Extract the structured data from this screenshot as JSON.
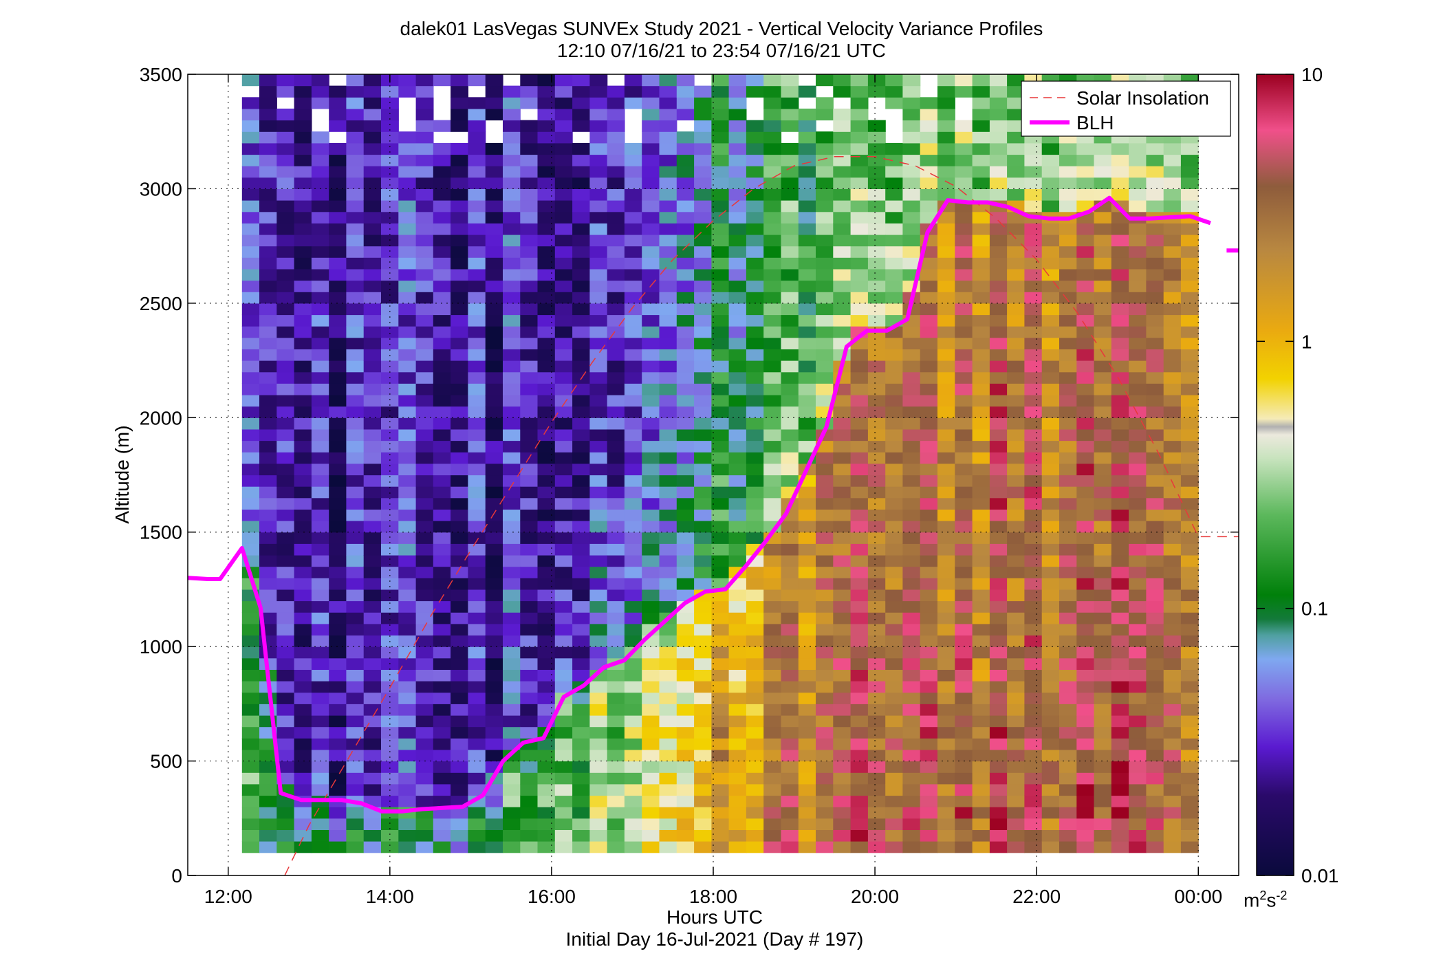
{
  "chart_data": {
    "type": "heatmap",
    "title": "dalek01 LasVegas SUNVEx Study 2021 - Vertical Velocity Variance Profiles",
    "subtitle": "12:10 07/16/21 to 23:54 07/16/21  UTC",
    "xlabel": "Hours UTC",
    "xlabel2": "Initial Day 16-Jul-2021 (Day # 197)",
    "ylabel": "Altitude (m)",
    "xlim": [
      11.5,
      24.5
    ],
    "ylim": [
      0,
      3500
    ],
    "x_ticks": [
      12,
      14,
      16,
      18,
      20,
      22,
      24
    ],
    "x_tick_labels": [
      "12:00",
      "14:00",
      "16:00",
      "18:00",
      "20:00",
      "22:00",
      "00:00"
    ],
    "y_ticks": [
      0,
      500,
      1000,
      1500,
      2000,
      2500,
      3000,
      3500
    ],
    "y_tick_labels": [
      "0",
      "500",
      "1000",
      "1500",
      "2000",
      "2500",
      "3000",
      "3500"
    ],
    "grid": true,
    "legend_position": "top-right",
    "colorbar": {
      "scale": "log",
      "range": [
        0.01,
        10
      ],
      "ticks": [
        0.01,
        0.1,
        1,
        10
      ],
      "tick_labels": [
        "0.01",
        "0.1",
        "1",
        "10"
      ],
      "unit_base": "m",
      "unit_exp1": "2",
      "unit_mid": "s",
      "unit_exp2": "-2"
    },
    "heatmap": {
      "time_start": 12.17,
      "time_end": 24.0,
      "n_cols": 55,
      "alt_start": 100,
      "alt_end": 3500,
      "n_rows": 68,
      "pattern_description": "log10 variance; low (<0.03) above boundary layer in morning, rising to ~0.5-3 within convective boundary layer in afternoon"
    },
    "series": [
      {
        "name": "Solar Insolation",
        "color": "#e8383a",
        "style": "dashed",
        "x": [
          12.7,
          13.0,
          13.5,
          14.0,
          14.5,
          15.0,
          15.5,
          16.0,
          16.5,
          17.0,
          17.5,
          18.0,
          18.5,
          19.0,
          19.5,
          20.0,
          20.5,
          21.0,
          21.5,
          22.0,
          22.5,
          23.0,
          23.5,
          24.0,
          24.5
        ],
        "y": [
          0,
          220,
          520,
          820,
          1130,
          1420,
          1700,
          1980,
          2240,
          2480,
          2690,
          2860,
          3000,
          3100,
          3140,
          3140,
          3100,
          3010,
          2870,
          2690,
          2460,
          2180,
          1850,
          1480,
          1480
        ]
      },
      {
        "name": "BLH",
        "color": "#ff00ff",
        "style": "solid",
        "x": [
          11.5,
          11.75,
          11.9,
          12.17,
          12.4,
          12.65,
          12.9,
          13.15,
          13.4,
          13.65,
          13.9,
          14.15,
          14.4,
          14.65,
          14.9,
          15.15,
          15.4,
          15.65,
          15.9,
          16.15,
          16.4,
          16.65,
          16.9,
          17.15,
          17.4,
          17.65,
          17.9,
          18.15,
          18.4,
          18.65,
          18.9,
          19.15,
          19.4,
          19.65,
          19.9,
          20.15,
          20.4,
          20.65,
          20.9,
          21.15,
          21.4,
          21.65,
          21.9,
          22.15,
          22.4,
          22.65,
          22.9,
          23.15,
          23.4,
          23.65,
          23.9,
          24.15
        ],
        "y": [
          1300,
          1295,
          1295,
          1430,
          1170,
          360,
          330,
          330,
          330,
          315,
          280,
          280,
          290,
          295,
          300,
          350,
          500,
          580,
          600,
          780,
          830,
          910,
          940,
          1030,
          1110,
          1190,
          1240,
          1250,
          1350,
          1460,
          1580,
          1770,
          1960,
          2310,
          2380,
          2380,
          2430,
          2810,
          2950,
          2940,
          2940,
          2920,
          2880,
          2870,
          2870,
          2900,
          2960,
          2870,
          2870,
          2875,
          2880,
          2850
        ],
        "tail_x": [
          24.5
        ],
        "tail_y": [
          2730
        ]
      }
    ]
  }
}
